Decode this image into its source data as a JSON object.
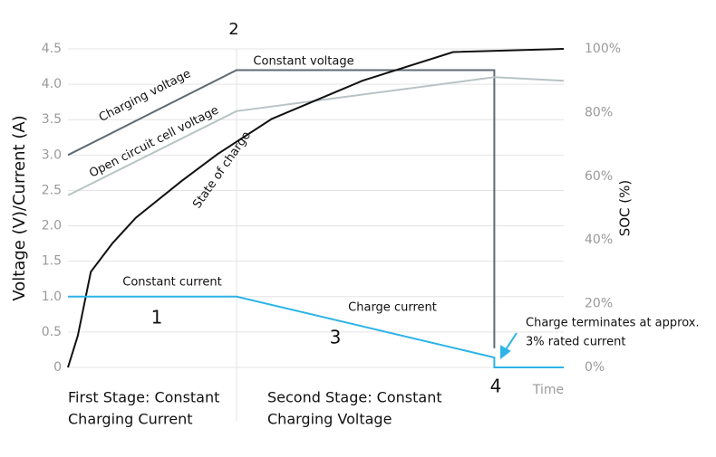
{
  "chart_data": {
    "type": "line",
    "y_label": "Voltage (V)/Current (A)",
    "y2_label": "SOC (%)",
    "x_label": "Time",
    "xlim": [
      0,
      100
    ],
    "ylim": [
      0,
      4.5
    ],
    "yticks": [
      0,
      0.5,
      {
        "value": 1,
        "label": "1.0"
      },
      1.5,
      {
        "value": 2,
        "label": "2.0"
      },
      2.5,
      {
        "value": 3,
        "label": "3.0"
      },
      3.5,
      {
        "value": 4,
        "label": "4.0"
      },
      4.5
    ],
    "y2lim": [
      0,
      100
    ],
    "y2ticks": [
      {
        "value": 0,
        "label": "0%"
      },
      {
        "value": 20,
        "label": "20%"
      },
      {
        "value": 40,
        "label": "40%"
      },
      {
        "value": 60,
        "label": "60%"
      },
      {
        "value": 80,
        "label": "80%"
      },
      {
        "value": 100,
        "label": "100%"
      }
    ],
    "grid": true,
    "series": [
      {
        "name": "Charging voltage",
        "color": "#5f6b73",
        "x": [
          0,
          34,
          86,
          86
        ],
        "values": [
          3.0,
          4.2,
          4.2,
          0.27
        ]
      },
      {
        "name": "Open circuit cell voltage",
        "color": "#b9c3c5",
        "x": [
          0,
          34,
          86,
          100
        ],
        "values": [
          2.43,
          3.62,
          4.1,
          4.05
        ]
      },
      {
        "name": "State of charge",
        "color": "#111111",
        "axis": "y2",
        "x": [
          0,
          2,
          4.6,
          9,
          13.7,
          22.9,
          30.2,
          41.1,
          59.4,
          77.7,
          100
        ],
        "values": [
          0,
          10,
          30,
          39,
          47,
          58.5,
          67,
          78,
          90,
          99,
          100
        ]
      },
      {
        "name": "Charge current",
        "color": "#2db3e8",
        "x": [
          0,
          34,
          86,
          86,
          100
        ],
        "values": [
          1.0,
          1.0,
          0.14,
          0,
          0
        ]
      }
    ],
    "annotations": [
      "2",
      "Constant voltage",
      "Constant current",
      "1",
      "3",
      "Charge terminates at approx.",
      "3% rated current",
      "4",
      "First Stage: Constant",
      "Charging Current",
      "Second Stage: Constant",
      "Charging Voltage"
    ]
  }
}
